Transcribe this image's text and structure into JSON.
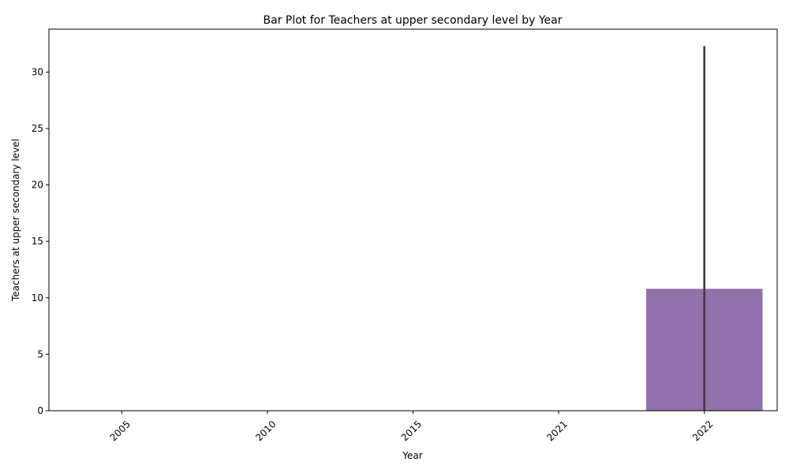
{
  "chart_data": {
    "type": "bar",
    "title": "Bar Plot for Teachers at upper secondary level by Year",
    "xlabel": "Year",
    "ylabel": "Teachers at upper secondary level",
    "categories": [
      "2005",
      "2010",
      "2015",
      "2021",
      "2022"
    ],
    "values": [
      0,
      0,
      0,
      0,
      10.8
    ],
    "error_bars": [
      null,
      null,
      null,
      null,
      [
        0,
        32.3
      ]
    ],
    "yticks": [
      0,
      5,
      10,
      15,
      20,
      25,
      30
    ],
    "ylim": [
      0,
      33.8
    ],
    "bar_color": "#9372ab",
    "error_color": "#3f3f3f",
    "grid": false,
    "legend": "none",
    "xtick_rotation": 45
  }
}
